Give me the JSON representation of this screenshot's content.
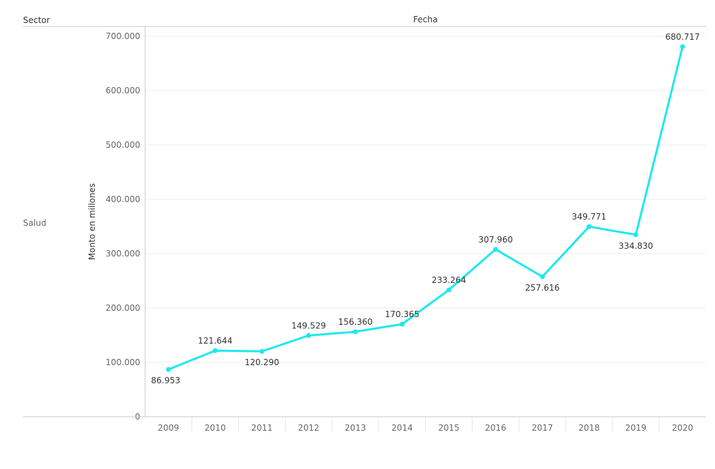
{
  "header": {
    "row_shelf_label": "Sector",
    "column_shelf_label": "Fecha"
  },
  "row_header": {
    "label": "Salud"
  },
  "chart_data": {
    "type": "line",
    "x": [
      "2009",
      "2010",
      "2011",
      "2012",
      "2013",
      "2014",
      "2015",
      "2016",
      "2017",
      "2018",
      "2019",
      "2020"
    ],
    "series": [
      {
        "values": [
          86953,
          121644,
          120290,
          149529,
          156360,
          170365,
          233264,
          307960,
          257616,
          349771,
          334830,
          680717
        ],
        "data_labels": [
          "86.953",
          "121.644",
          "120.290",
          "149.529",
          "156.360",
          "170.365",
          "233.264",
          "307.960",
          "257.616",
          "349.771",
          "334.830",
          "680.717"
        ],
        "color": "#1ee8ee"
      }
    ],
    "xlabel": "",
    "ylabel": "Monto en millones",
    "ylim": [
      0,
      700000
    ],
    "yticks": [
      0,
      100000,
      200000,
      300000,
      400000,
      500000,
      600000,
      700000
    ],
    "ytick_labels": [
      "0",
      "100.000",
      "200.000",
      "300.000",
      "400.000",
      "500.000",
      "600.000",
      "700.000"
    ],
    "grid": "horizontal"
  },
  "colors": {
    "line": "#1ee8ee",
    "gridline": "#eeeeee",
    "axis_line": "#c8c8c8",
    "text_dark": "#333333",
    "text_muted": "#666666"
  }
}
